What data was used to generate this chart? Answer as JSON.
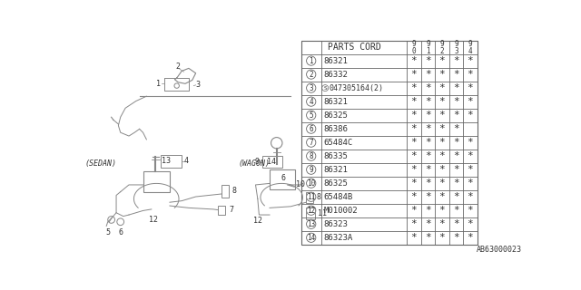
{
  "bg_color": "#ffffff",
  "diagram_ref": "AB63000023",
  "parts": [
    {
      "num": 1,
      "code": "86321",
      "stars": [
        true,
        true,
        true,
        true,
        true
      ]
    },
    {
      "num": 2,
      "code": "86332",
      "stars": [
        true,
        true,
        true,
        true,
        true
      ]
    },
    {
      "num": 3,
      "code": "S047305164(2)",
      "stars": [
        true,
        true,
        true,
        true,
        true
      ]
    },
    {
      "num": 4,
      "code": "86321",
      "stars": [
        true,
        true,
        true,
        true,
        true
      ]
    },
    {
      "num": 5,
      "code": "86325",
      "stars": [
        true,
        true,
        true,
        true,
        true
      ]
    },
    {
      "num": 6,
      "code": "86386",
      "stars": [
        true,
        true,
        true,
        true,
        false
      ]
    },
    {
      "num": 7,
      "code": "65484C",
      "stars": [
        true,
        true,
        true,
        true,
        true
      ]
    },
    {
      "num": 8,
      "code": "86335",
      "stars": [
        true,
        true,
        true,
        true,
        true
      ]
    },
    {
      "num": 9,
      "code": "86321",
      "stars": [
        true,
        true,
        true,
        true,
        true
      ]
    },
    {
      "num": 10,
      "code": "86325",
      "stars": [
        true,
        true,
        true,
        true,
        true
      ]
    },
    {
      "num": 11,
      "code": "65484B",
      "stars": [
        true,
        true,
        true,
        true,
        true
      ]
    },
    {
      "num": 12,
      "code": "M010002",
      "stars": [
        true,
        true,
        true,
        true,
        true
      ]
    },
    {
      "num": 13,
      "code": "86323",
      "stars": [
        true,
        true,
        true,
        true,
        true
      ]
    },
    {
      "num": 14,
      "code": "86323A",
      "stars": [
        true,
        true,
        true,
        true,
        true
      ]
    }
  ],
  "line_color": "#666666",
  "text_color": "#333333",
  "gray": "#888888"
}
